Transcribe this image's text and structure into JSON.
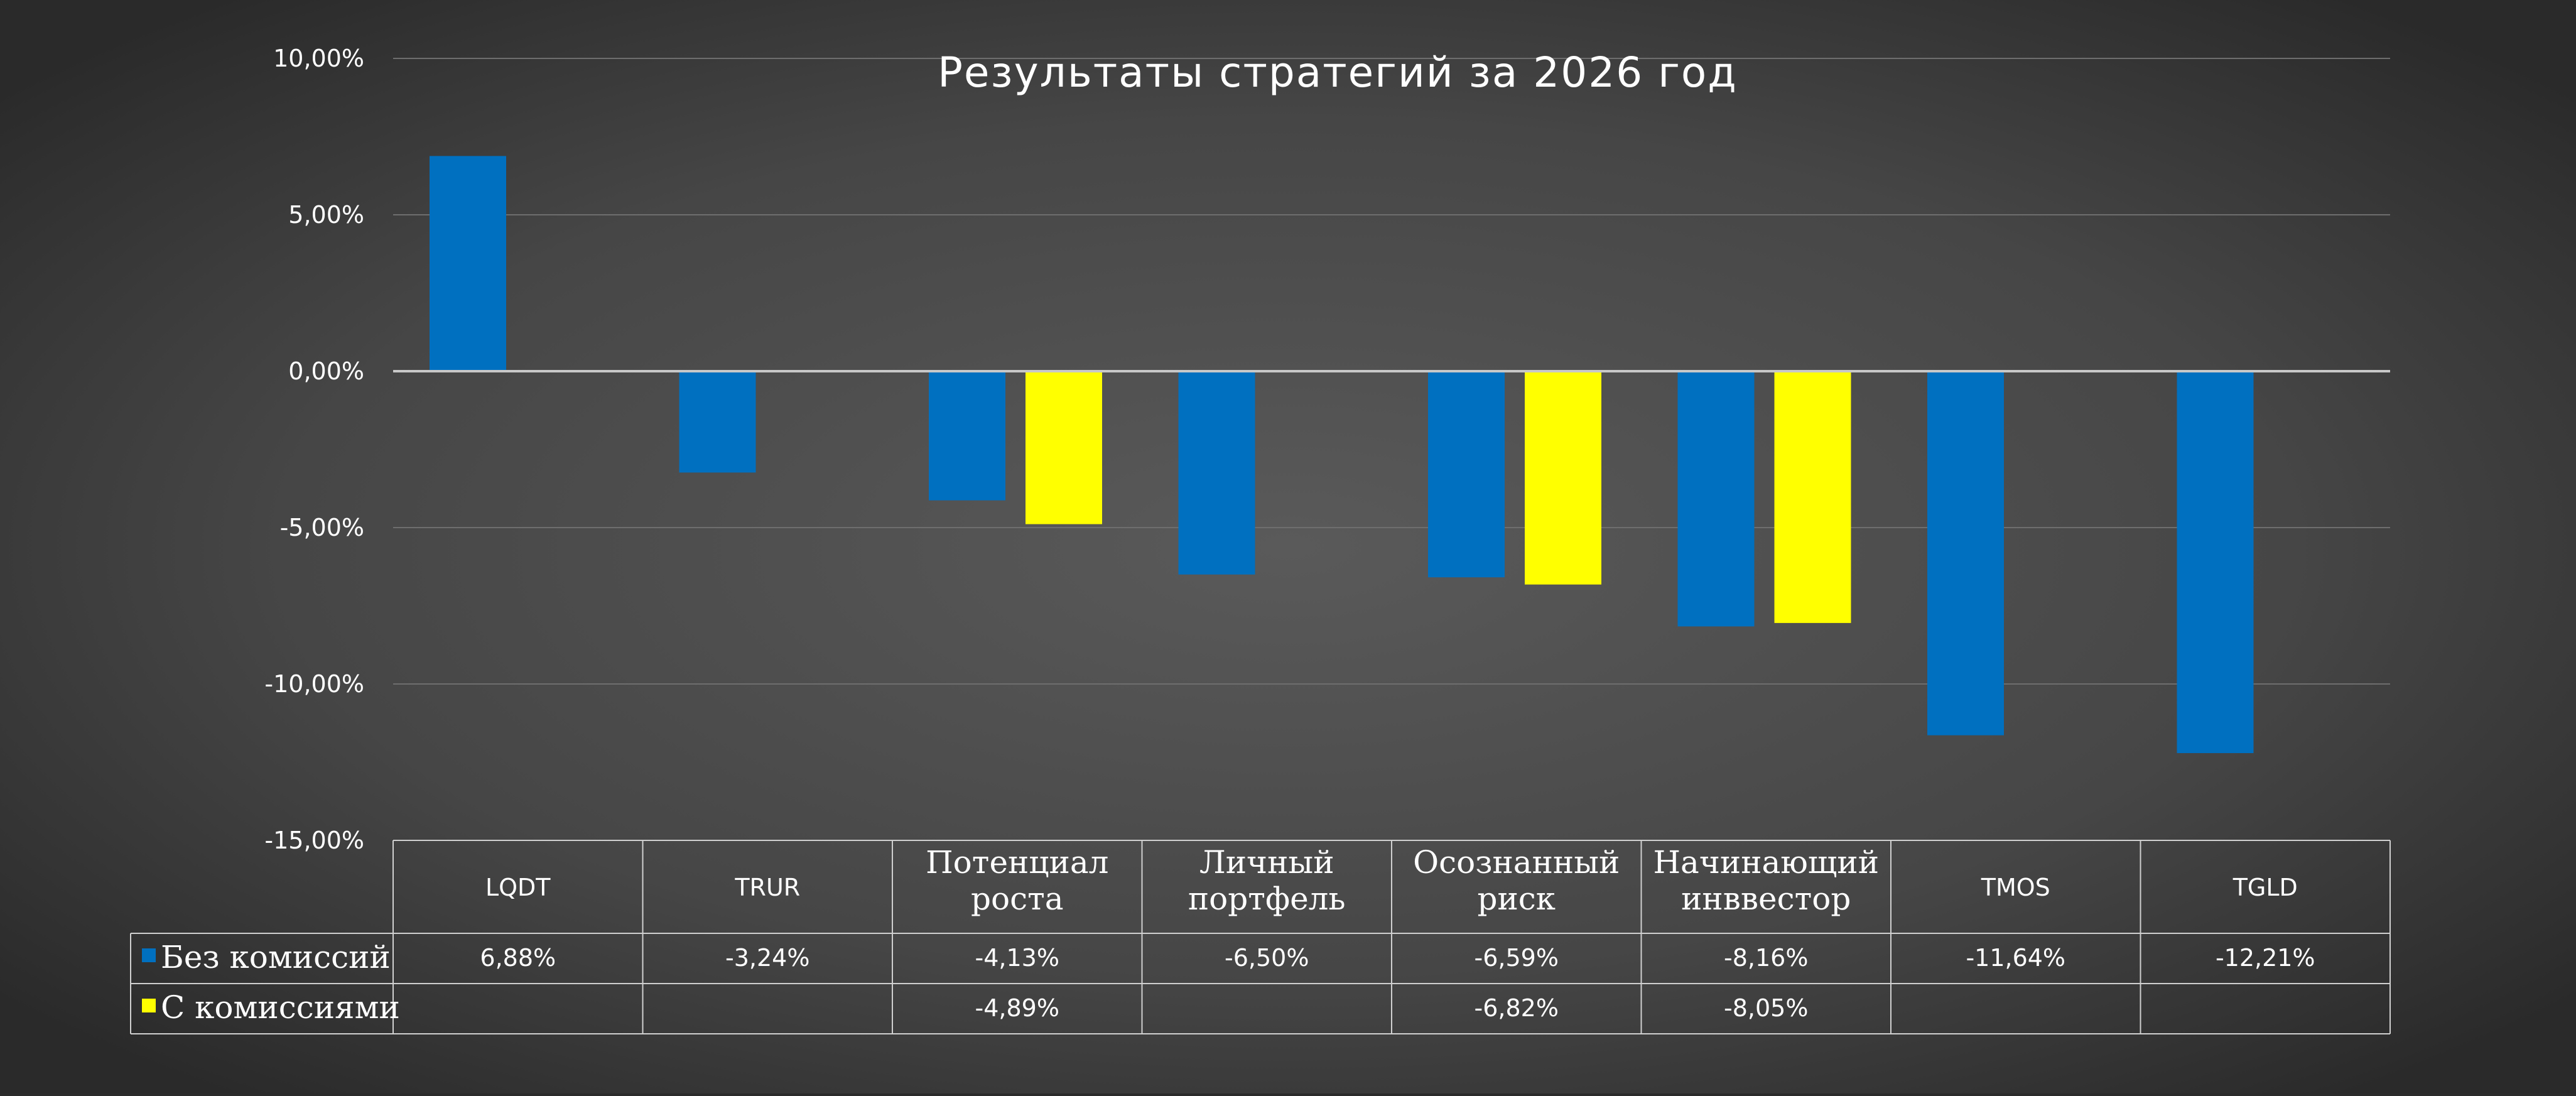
{
  "chart_data": {
    "type": "bar",
    "title": "Результаты стратегий за 2026 год",
    "categories": [
      [
        "LQDT"
      ],
      [
        "TRUR"
      ],
      [
        "Потенциал",
        "роста"
      ],
      [
        "Личный",
        "портфель"
      ],
      [
        "Осознанный",
        "риск"
      ],
      [
        "Начинающий",
        "инввестор"
      ],
      [
        "TMOS"
      ],
      [
        "TGLD"
      ]
    ],
    "series": [
      {
        "name": "Без комиссий",
        "color": "#0070c0",
        "values": [
          6.88,
          -3.24,
          -4.13,
          -6.5,
          -6.59,
          -8.16,
          -11.64,
          -12.21
        ],
        "labels": [
          "6,88%",
          "-3,24%",
          "-4,13%",
          "-6,50%",
          "-6,59%",
          "-8,16%",
          "-11,64%",
          "-12,21%"
        ]
      },
      {
        "name": "С комиссиями",
        "color": "#ffff00",
        "values": [
          null,
          null,
          -4.89,
          null,
          -6.82,
          -8.05,
          null,
          null
        ],
        "labels": [
          "",
          "",
          "-4,89%",
          "",
          "-6,82%",
          "-8,05%",
          "",
          ""
        ]
      }
    ],
    "ylim": [
      -15,
      10
    ],
    "yticks": [
      10,
      5,
      0,
      -5,
      -10,
      -15
    ],
    "ytick_labels": [
      "10,00%",
      "5,00%",
      "0,00%",
      "-5,00%",
      "-10,00%",
      "-15,00%"
    ],
    "grid": true,
    "legend": "data-table"
  }
}
